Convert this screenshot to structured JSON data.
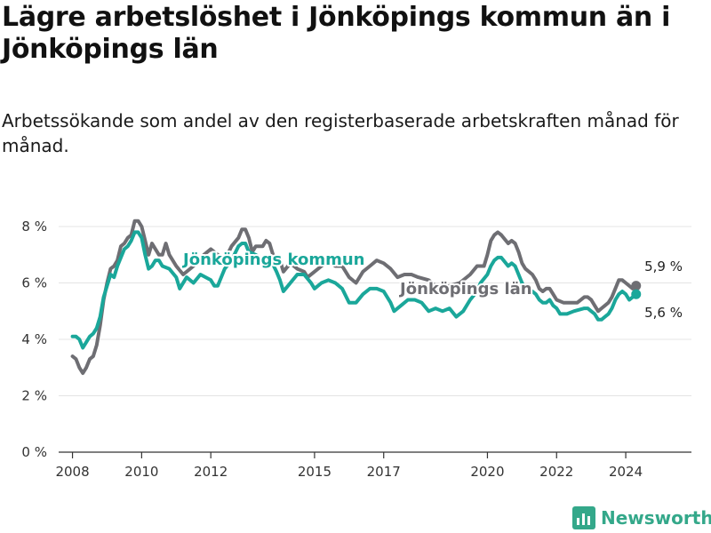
{
  "title": "Lägre arbetslöshet i Jönköpings kommun än i Jönköpings län",
  "subtitle": "Arbetssökande som andel av den registerbaserade arbetskraften månad för månad.",
  "brand": "Newsworthy",
  "colors": {
    "kommun": "#1aa79a",
    "lan": "#6e6e73",
    "grid": "#e4e4e4",
    "axis": "#333333",
    "brand": "#34a88a"
  },
  "chart_data": {
    "type": "line",
    "title": "Lägre arbetslöshet i Jönköpings kommun än i Jönköpings län",
    "subtitle": "Arbetssökande som andel av den registerbaserade arbetskraften månad för månad.",
    "xlabel": "",
    "ylabel": "",
    "xlim": [
      2007.6,
      2025.9
    ],
    "ylim": [
      0,
      8
    ],
    "y_ticks": [
      0,
      2,
      4,
      6,
      8
    ],
    "y_tick_labels": [
      "0 %",
      "2 %",
      "4 %",
      "6 %",
      "8 %"
    ],
    "x_ticks": [
      2008,
      2010,
      2012,
      2015,
      2017,
      2020,
      2022,
      2024
    ],
    "x_tick_labels": [
      "2008",
      "2010",
      "2012",
      "2015",
      "2017",
      "2020",
      "2022",
      "2024"
    ],
    "grid": true,
    "series": [
      {
        "name": "Jönköpings län",
        "label": "Jönköpings län",
        "end_label": "5,9 %",
        "last_value": 5.9,
        "points": [
          [
            2008.0,
            3.4
          ],
          [
            2008.1,
            3.3
          ],
          [
            2008.2,
            3.0
          ],
          [
            2008.3,
            2.8
          ],
          [
            2008.4,
            3.0
          ],
          [
            2008.5,
            3.3
          ],
          [
            2008.6,
            3.4
          ],
          [
            2008.7,
            3.8
          ],
          [
            2008.8,
            4.5
          ],
          [
            2008.9,
            5.4
          ],
          [
            2009.0,
            6.0
          ],
          [
            2009.1,
            6.5
          ],
          [
            2009.2,
            6.6
          ],
          [
            2009.3,
            6.8
          ],
          [
            2009.4,
            7.3
          ],
          [
            2009.5,
            7.4
          ],
          [
            2009.6,
            7.6
          ],
          [
            2009.7,
            7.7
          ],
          [
            2009.8,
            8.2
          ],
          [
            2009.9,
            8.2
          ],
          [
            2010.0,
            8.0
          ],
          [
            2010.1,
            7.5
          ],
          [
            2010.2,
            7.0
          ],
          [
            2010.3,
            7.4
          ],
          [
            2010.4,
            7.2
          ],
          [
            2010.5,
            7.0
          ],
          [
            2010.6,
            7.0
          ],
          [
            2010.7,
            7.4
          ],
          [
            2010.8,
            7.0
          ],
          [
            2011.0,
            6.6
          ],
          [
            2011.2,
            6.3
          ],
          [
            2011.5,
            6.6
          ],
          [
            2011.8,
            7.0
          ],
          [
            2012.0,
            7.2
          ],
          [
            2012.2,
            7.0
          ],
          [
            2012.4,
            6.8
          ],
          [
            2012.6,
            7.3
          ],
          [
            2012.8,
            7.6
          ],
          [
            2012.9,
            7.9
          ],
          [
            2013.0,
            7.9
          ],
          [
            2013.1,
            7.6
          ],
          [
            2013.2,
            7.1
          ],
          [
            2013.3,
            7.3
          ],
          [
            2013.5,
            7.3
          ],
          [
            2013.6,
            7.5
          ],
          [
            2013.7,
            7.4
          ],
          [
            2013.8,
            7.0
          ],
          [
            2014.0,
            6.8
          ],
          [
            2014.1,
            6.4
          ],
          [
            2014.3,
            6.7
          ],
          [
            2014.5,
            6.5
          ],
          [
            2014.7,
            6.4
          ],
          [
            2014.8,
            6.2
          ],
          [
            2015.0,
            6.4
          ],
          [
            2015.2,
            6.6
          ],
          [
            2015.4,
            6.8
          ],
          [
            2015.6,
            6.6
          ],
          [
            2015.8,
            6.6
          ],
          [
            2016.0,
            6.2
          ],
          [
            2016.2,
            6.0
          ],
          [
            2016.4,
            6.4
          ],
          [
            2016.6,
            6.6
          ],
          [
            2016.8,
            6.8
          ],
          [
            2017.0,
            6.7
          ],
          [
            2017.2,
            6.5
          ],
          [
            2017.4,
            6.2
          ],
          [
            2017.6,
            6.3
          ],
          [
            2017.8,
            6.3
          ],
          [
            2018.0,
            6.2
          ],
          [
            2018.3,
            6.1
          ],
          [
            2018.6,
            5.8
          ],
          [
            2018.9,
            5.9
          ],
          [
            2019.2,
            6.0
          ],
          [
            2019.5,
            6.3
          ],
          [
            2019.7,
            6.6
          ],
          [
            2019.9,
            6.6
          ],
          [
            2020.0,
            7.0
          ],
          [
            2020.1,
            7.5
          ],
          [
            2020.2,
            7.7
          ],
          [
            2020.3,
            7.8
          ],
          [
            2020.4,
            7.7
          ],
          [
            2020.6,
            7.4
          ],
          [
            2020.7,
            7.5
          ],
          [
            2020.8,
            7.4
          ],
          [
            2020.9,
            7.1
          ],
          [
            2021.0,
            6.7
          ],
          [
            2021.1,
            6.5
          ],
          [
            2021.3,
            6.3
          ],
          [
            2021.4,
            6.1
          ],
          [
            2021.5,
            5.8
          ],
          [
            2021.6,
            5.7
          ],
          [
            2021.7,
            5.8
          ],
          [
            2021.8,
            5.8
          ],
          [
            2021.9,
            5.6
          ],
          [
            2022.0,
            5.4
          ],
          [
            2022.2,
            5.3
          ],
          [
            2022.4,
            5.3
          ],
          [
            2022.6,
            5.3
          ],
          [
            2022.8,
            5.5
          ],
          [
            2022.9,
            5.5
          ],
          [
            2023.0,
            5.4
          ],
          [
            2023.1,
            5.2
          ],
          [
            2023.2,
            5.0
          ],
          [
            2023.3,
            5.1
          ],
          [
            2023.4,
            5.2
          ],
          [
            2023.5,
            5.3
          ],
          [
            2023.6,
            5.5
          ],
          [
            2023.7,
            5.8
          ],
          [
            2023.8,
            6.1
          ],
          [
            2023.9,
            6.1
          ],
          [
            2024.0,
            6.0
          ],
          [
            2024.1,
            5.9
          ],
          [
            2024.2,
            5.8
          ],
          [
            2024.3,
            5.9
          ]
        ]
      },
      {
        "name": "Jönköpings kommun",
        "label": "Jönköpings kommun",
        "end_label": "5,6 %",
        "last_value": 5.6,
        "points": [
          [
            2008.0,
            4.1
          ],
          [
            2008.1,
            4.1
          ],
          [
            2008.2,
            4.0
          ],
          [
            2008.3,
            3.7
          ],
          [
            2008.4,
            3.9
          ],
          [
            2008.5,
            4.1
          ],
          [
            2008.6,
            4.2
          ],
          [
            2008.7,
            4.4
          ],
          [
            2008.8,
            4.8
          ],
          [
            2008.9,
            5.5
          ],
          [
            2009.0,
            5.9
          ],
          [
            2009.1,
            6.3
          ],
          [
            2009.2,
            6.2
          ],
          [
            2009.3,
            6.6
          ],
          [
            2009.4,
            6.9
          ],
          [
            2009.5,
            7.2
          ],
          [
            2009.6,
            7.3
          ],
          [
            2009.7,
            7.5
          ],
          [
            2009.8,
            7.8
          ],
          [
            2009.9,
            7.8
          ],
          [
            2010.0,
            7.6
          ],
          [
            2010.1,
            7.0
          ],
          [
            2010.2,
            6.5
          ],
          [
            2010.3,
            6.6
          ],
          [
            2010.4,
            6.8
          ],
          [
            2010.5,
            6.8
          ],
          [
            2010.6,
            6.6
          ],
          [
            2010.8,
            6.5
          ],
          [
            2011.0,
            6.2
          ],
          [
            2011.1,
            5.8
          ],
          [
            2011.3,
            6.2
          ],
          [
            2011.5,
            6.0
          ],
          [
            2011.7,
            6.3
          ],
          [
            2012.0,
            6.1
          ],
          [
            2012.1,
            5.9
          ],
          [
            2012.2,
            5.9
          ],
          [
            2012.4,
            6.5
          ],
          [
            2012.6,
            6.8
          ],
          [
            2012.8,
            7.3
          ],
          [
            2012.9,
            7.4
          ],
          [
            2013.0,
            7.4
          ],
          [
            2013.1,
            7.1
          ],
          [
            2013.3,
            7.0
          ],
          [
            2013.5,
            6.8
          ],
          [
            2013.7,
            6.9
          ],
          [
            2013.9,
            6.4
          ],
          [
            2014.0,
            6.1
          ],
          [
            2014.1,
            5.7
          ],
          [
            2014.3,
            6.0
          ],
          [
            2014.5,
            6.3
          ],
          [
            2014.7,
            6.3
          ],
          [
            2014.9,
            6.0
          ],
          [
            2015.0,
            5.8
          ],
          [
            2015.2,
            6.0
          ],
          [
            2015.4,
            6.1
          ],
          [
            2015.6,
            6.0
          ],
          [
            2015.8,
            5.8
          ],
          [
            2016.0,
            5.3
          ],
          [
            2016.2,
            5.3
          ],
          [
            2016.4,
            5.6
          ],
          [
            2016.6,
            5.8
          ],
          [
            2016.8,
            5.8
          ],
          [
            2017.0,
            5.7
          ],
          [
            2017.2,
            5.3
          ],
          [
            2017.3,
            5.0
          ],
          [
            2017.5,
            5.2
          ],
          [
            2017.7,
            5.4
          ],
          [
            2017.9,
            5.4
          ],
          [
            2018.1,
            5.3
          ],
          [
            2018.3,
            5.0
          ],
          [
            2018.5,
            5.1
          ],
          [
            2018.7,
            5.0
          ],
          [
            2018.9,
            5.1
          ],
          [
            2019.1,
            4.8
          ],
          [
            2019.3,
            5.0
          ],
          [
            2019.5,
            5.4
          ],
          [
            2019.7,
            5.7
          ],
          [
            2019.8,
            6.0
          ],
          [
            2020.0,
            6.3
          ],
          [
            2020.1,
            6.6
          ],
          [
            2020.2,
            6.8
          ],
          [
            2020.3,
            6.9
          ],
          [
            2020.4,
            6.9
          ],
          [
            2020.6,
            6.6
          ],
          [
            2020.7,
            6.7
          ],
          [
            2020.8,
            6.6
          ],
          [
            2020.9,
            6.3
          ],
          [
            2021.0,
            6.0
          ],
          [
            2021.1,
            5.8
          ],
          [
            2021.3,
            5.7
          ],
          [
            2021.4,
            5.6
          ],
          [
            2021.5,
            5.4
          ],
          [
            2021.6,
            5.3
          ],
          [
            2021.7,
            5.3
          ],
          [
            2021.8,
            5.4
          ],
          [
            2021.9,
            5.2
          ],
          [
            2022.0,
            5.1
          ],
          [
            2022.1,
            4.9
          ],
          [
            2022.3,
            4.9
          ],
          [
            2022.5,
            5.0
          ],
          [
            2022.8,
            5.1
          ],
          [
            2022.9,
            5.1
          ],
          [
            2023.0,
            5.0
          ],
          [
            2023.1,
            4.9
          ],
          [
            2023.2,
            4.7
          ],
          [
            2023.3,
            4.7
          ],
          [
            2023.4,
            4.8
          ],
          [
            2023.5,
            4.9
          ],
          [
            2023.6,
            5.1
          ],
          [
            2023.7,
            5.4
          ],
          [
            2023.8,
            5.6
          ],
          [
            2023.9,
            5.7
          ],
          [
            2024.0,
            5.6
          ],
          [
            2024.1,
            5.4
          ],
          [
            2024.2,
            5.5
          ],
          [
            2024.3,
            5.6
          ]
        ]
      }
    ]
  }
}
